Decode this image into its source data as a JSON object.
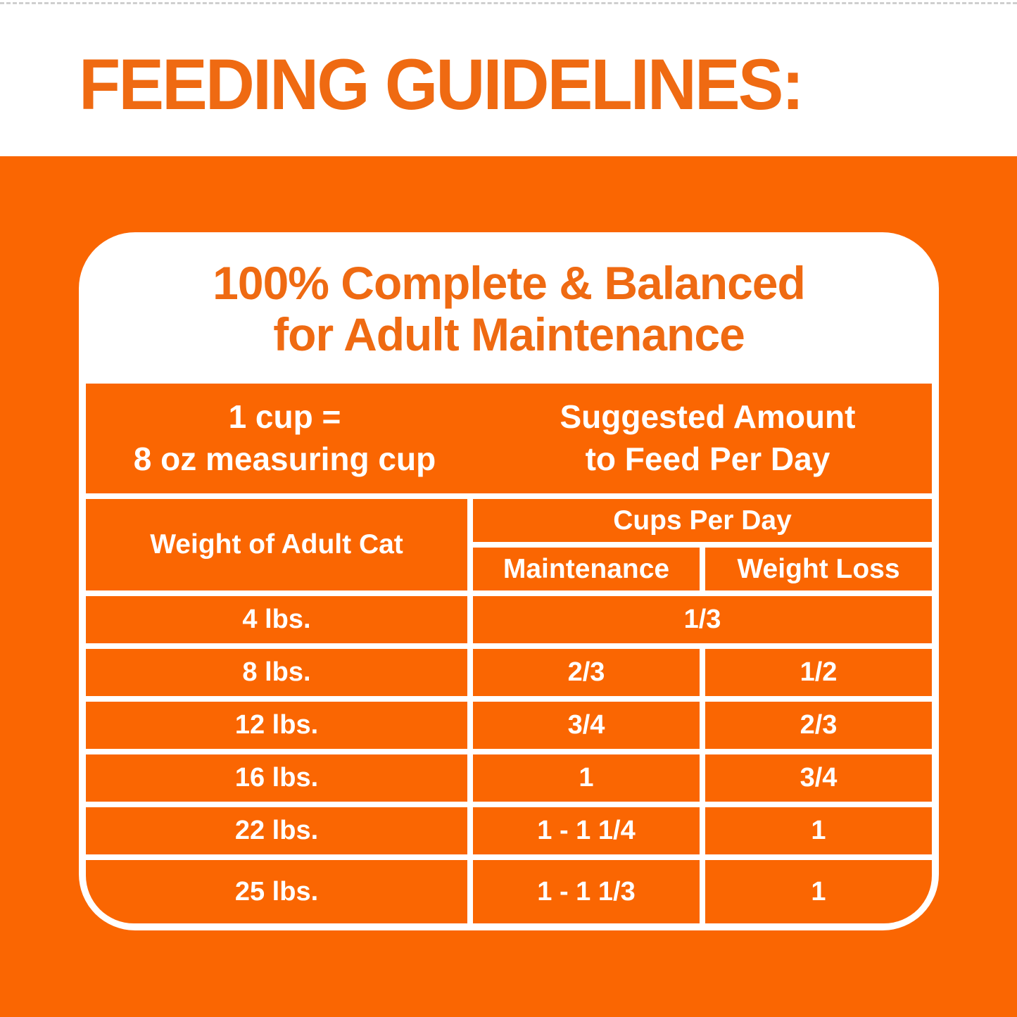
{
  "colors": {
    "orange": "#FA6602",
    "orange_text": "#EF6A12",
    "card_white": "#FFFFFF",
    "cell_text": "#FFFFFF"
  },
  "page_title": "FEEDING GUIDELINES:",
  "card": {
    "title_line1": "100% Complete & Balanced",
    "title_line2": "for Adult Maintenance"
  },
  "table": {
    "cup_note_line1": "1 cup =",
    "cup_note_line2": "8 oz measuring cup",
    "suggested_line1": "Suggested Amount",
    "suggested_line2": "to Feed Per Day",
    "columns": {
      "weight": "Weight of Adult Cat",
      "cups_group": "Cups Per Day",
      "maintenance": "Maintenance",
      "weight_loss": "Weight Loss"
    },
    "rows": [
      {
        "weight": "4 lbs.",
        "cups_merged": "1/3"
      },
      {
        "weight": "8 lbs.",
        "maintenance": "2/3",
        "weight_loss": "1/2"
      },
      {
        "weight": "12 lbs.",
        "maintenance": "3/4",
        "weight_loss": "2/3"
      },
      {
        "weight": "16 lbs.",
        "maintenance": "1",
        "weight_loss": "3/4"
      },
      {
        "weight": "22 lbs.",
        "maintenance": "1 - 1 1/4",
        "weight_loss": "1"
      },
      {
        "weight": "25 lbs.",
        "maintenance": "1 - 1 1/3",
        "weight_loss": "1"
      }
    ]
  }
}
